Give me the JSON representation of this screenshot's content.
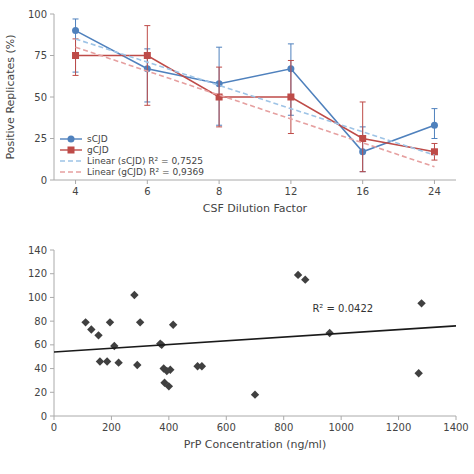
{
  "chart_data": [
    {
      "type": "line",
      "xlabel": "CSF Dilution Factor",
      "ylabel": "Positive Replicates (%)",
      "categories": [
        "4",
        "6",
        "8",
        "12",
        "16",
        "24"
      ],
      "ylim": [
        0,
        100
      ],
      "yticks": [
        0,
        25,
        50,
        75,
        100
      ],
      "grid": false,
      "legend": "lower left",
      "series": [
        {
          "name": "sCJD",
          "color": "#4F81BD",
          "marker": "circle",
          "line_style": "solid",
          "values": [
            90,
            67,
            58,
            67,
            17,
            33
          ],
          "error_lower": [
            25,
            20,
            25,
            28,
            12,
            8
          ],
          "error_upper": [
            7,
            12,
            22,
            15,
            15,
            10
          ]
        },
        {
          "name": "gCJD",
          "color": "#BE4B48",
          "marker": "square",
          "line_style": "solid",
          "values": [
            75,
            75,
            50,
            50,
            25,
            17
          ],
          "error_lower": [
            12,
            30,
            18,
            22,
            20,
            5
          ],
          "error_upper": [
            10,
            18,
            18,
            22,
            22,
            5
          ]
        },
        {
          "name": "Linear (sCJD) R² = 0,7525",
          "color": "#9DC3E6",
          "line_style": "dashed",
          "x": [
            "4",
            "24"
          ],
          "values": [
            85,
            15
          ]
        },
        {
          "name": "Linear (gCJD) R² = 0,9369",
          "color": "#E6A0A0",
          "line_style": "dashed",
          "x": [
            "4",
            "24"
          ],
          "values": [
            80,
            8
          ]
        }
      ]
    },
    {
      "type": "scatter",
      "xlabel": "PrP Concentration (ng/ml)",
      "xlim": [
        0,
        1400
      ],
      "ylim": [
        0,
        140
      ],
      "xticks": [
        0,
        200,
        400,
        600,
        800,
        1000,
        1200,
        1400
      ],
      "yticks": [
        0,
        20,
        40,
        60,
        80,
        100,
        120,
        140
      ],
      "grid": false,
      "series": [
        {
          "type": "scatter",
          "color": "#404040",
          "marker": "diamond",
          "x": [
            110,
            130,
            155,
            160,
            185,
            195,
            210,
            225,
            280,
            290,
            300,
            370,
            375,
            382,
            385,
            393,
            400,
            405,
            415,
            500,
            515,
            700,
            850,
            875,
            960,
            1270,
            1280
          ],
          "values": [
            79,
            73,
            68,
            46,
            46,
            79,
            59,
            45,
            102,
            43,
            79,
            61,
            60,
            40,
            28,
            38,
            25,
            39,
            77,
            42,
            42,
            18,
            119,
            115,
            70,
            36,
            95
          ]
        },
        {
          "type": "line",
          "color": "#1a1a1a",
          "line_style": "solid",
          "x": [
            0,
            1400
          ],
          "values": [
            54,
            76
          ]
        }
      ],
      "annotations": [
        {
          "text": "R² = 0.0422",
          "x": 900,
          "y": 88
        }
      ]
    }
  ]
}
